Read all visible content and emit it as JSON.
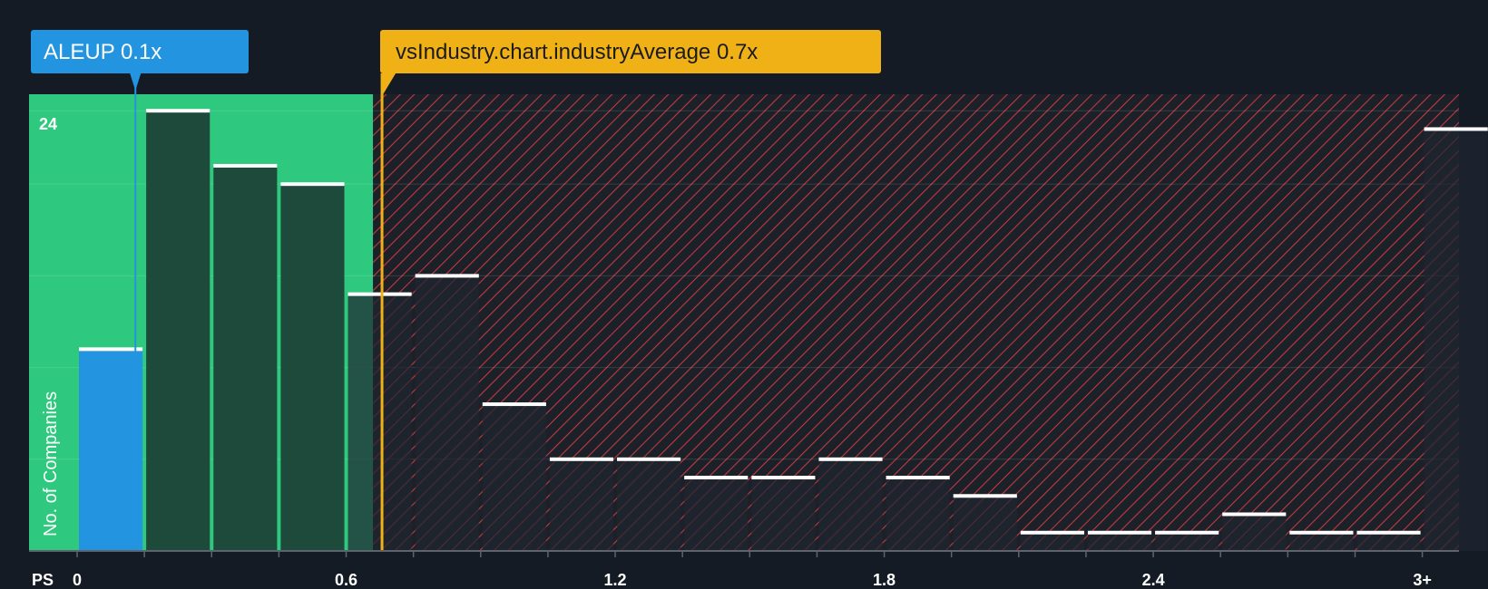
{
  "chart_data": {
    "type": "bar",
    "title": "",
    "xlabel": "PS",
    "ylabel": "No. of Companies",
    "y_tick_labels": [
      "24"
    ],
    "ylim": [
      0,
      24.9
    ],
    "x_tick_labels": [
      "0",
      "0.6",
      "1.2",
      "1.8",
      "2.4",
      "3+"
    ],
    "xlim": [
      0,
      3.15
    ],
    "bin_width": 0.15,
    "bins_start": [
      0,
      0.15,
      0.3,
      0.45,
      0.6,
      0.75,
      0.9,
      1.05,
      1.2,
      1.35,
      1.5,
      1.65,
      1.8,
      1.95,
      2.1,
      2.25,
      2.4,
      2.55,
      2.7,
      2.85,
      3.0
    ],
    "values": [
      11,
      24,
      21,
      20,
      14,
      15,
      8,
      5,
      5,
      4,
      4,
      5,
      4,
      3,
      1,
      1,
      1,
      2,
      1,
      1,
      23
    ],
    "company": {
      "label": "ALEUP 0.1x",
      "value": 0.13,
      "color": "#2394e0"
    },
    "industry_average": {
      "label": "vsIndustry.chart.industryAverage 0.7x",
      "value": 0.68,
      "color": "#f0b117"
    },
    "colors": {
      "below_avg_region": "#2ec97e",
      "below_avg_bar": "#1d4a3b",
      "above_avg_bar": "#202531",
      "hatch_line": "#c03a40",
      "bar_top": "#ffffff"
    }
  }
}
